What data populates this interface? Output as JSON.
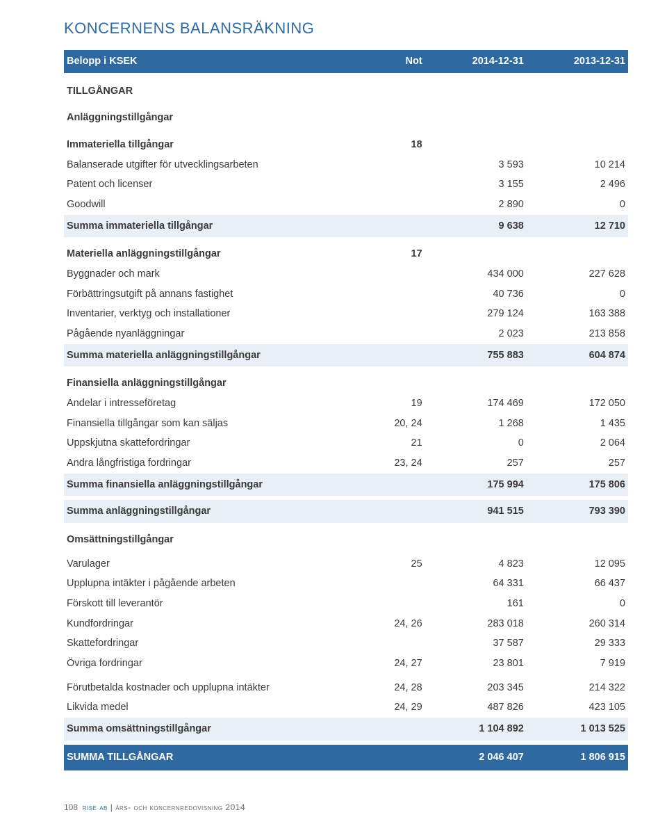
{
  "title": "KONCERNENS BALANSRÄKNING",
  "header": {
    "c0": "Belopp i KSEK",
    "c1": "Not",
    "c2": "2014-12-31",
    "c3": "2013-12-31"
  },
  "sections": {
    "tillgangar": "TILLGÅNGAR",
    "anlaggning": "Anläggningstillgångar",
    "immateriella": {
      "label": "Immateriella tillgångar",
      "not": "18"
    },
    "r_balanserade": {
      "label": "Balanserade utgifter för utvecklingsarbeten",
      "v1": "3 593",
      "v2": "10 214"
    },
    "r_patent": {
      "label": "Patent och licenser",
      "v1": "3 155",
      "v2": "2 496"
    },
    "r_goodwill": {
      "label": "Goodwill",
      "v1": "2 890",
      "v2": "0"
    },
    "s_immateriella": {
      "label": "Summa immateriella tillgångar",
      "v1": "9 638",
      "v2": "12 710"
    },
    "materiella": {
      "label": "Materiella anläggningstillgångar",
      "not": "17"
    },
    "r_byggnader": {
      "label": "Byggnader och mark",
      "v1": "434 000",
      "v2": "227 628"
    },
    "r_forbattring": {
      "label": "Förbättringsutgift på annans fastighet",
      "v1": "40 736",
      "v2": "0"
    },
    "r_inventarier": {
      "label": "Inventarier, verktyg och installationer",
      "v1": "279 124",
      "v2": "163 388"
    },
    "r_pagaende": {
      "label": "Pågående nyanläggningar",
      "v1": "2 023",
      "v2": "213 858"
    },
    "s_materiella": {
      "label": "Summa materiella anläggningstillgångar",
      "v1": "755 883",
      "v2": "604 874"
    },
    "finansiella": {
      "label": "Finansiella anläggningstillgångar"
    },
    "r_andelar": {
      "label": "Andelar i intresseföretag",
      "not": "19",
      "v1": "174 469",
      "v2": "172 050"
    },
    "r_fintill": {
      "label": "Finansiella tillgångar som kan säljas",
      "not": "20, 24",
      "v1": "1 268",
      "v2": "1 435"
    },
    "r_uppskjut": {
      "label": "Uppskjutna skattefordringar",
      "not": "21",
      "v1": "0",
      "v2": "2 064"
    },
    "r_andralang": {
      "label": "Andra långfristiga fordringar",
      "not": "23, 24",
      "v1": "257",
      "v2": "257"
    },
    "s_finansiella": {
      "label": "Summa finansiella anläggningstillgångar",
      "v1": "175 994",
      "v2": "175 806"
    },
    "s_anlaggning": {
      "label": "Summa anläggningstillgångar",
      "v1": "941 515",
      "v2": "793 390"
    },
    "omsattning": "Omsättningstillgångar",
    "r_varulager": {
      "label": "Varulager",
      "not": "25",
      "v1": "4 823",
      "v2": "12 095"
    },
    "r_upplupna": {
      "label": "Upplupna intäkter i pågående arbeten",
      "v1": "64 331",
      "v2": "66 437"
    },
    "r_forskott": {
      "label": "Förskott till leverantör",
      "v1": "161",
      "v2": "0"
    },
    "r_kundford": {
      "label": "Kundfordringar",
      "not": "24, 26",
      "v1": "283 018",
      "v2": "260 314"
    },
    "r_skatteford": {
      "label": "Skattefordringar",
      "v1": "37 587",
      "v2": "29 333"
    },
    "r_ovriga": {
      "label": "Övriga fordringar",
      "not": "24, 27",
      "v1": "23 801",
      "v2": "7 919"
    },
    "r_forutbet": {
      "label": "Förutbetalda kostnader och upplupna intäkter",
      "not": "24, 28",
      "v1": "203 345",
      "v2": "214 322"
    },
    "r_likvida": {
      "label": "Likvida medel",
      "not": "24, 29",
      "v1": "487 826",
      "v2": "423 105"
    },
    "s_omsattning": {
      "label": "Summa omsättningstillgångar",
      "v1": "1 104 892",
      "v2": "1 013 525"
    },
    "grand": {
      "label": "SUMMA TILLGÅNGAR",
      "v1": "2 046 407",
      "v2": "1 806 915"
    }
  },
  "footer": {
    "page": "108",
    "firm": "rise ab",
    "sep": " | ",
    "rest": "års- och koncernredovisning 2014"
  }
}
